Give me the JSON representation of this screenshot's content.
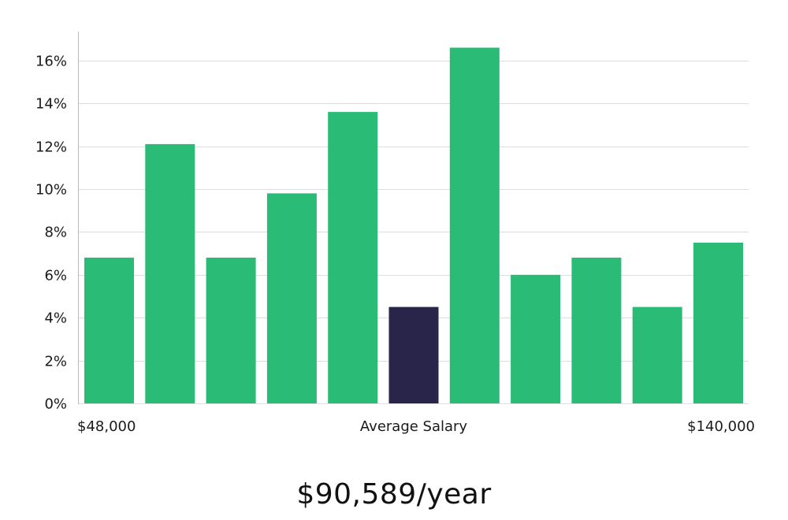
{
  "chart_data": {
    "type": "bar",
    "title": "",
    "xlabel": "Average Salary",
    "ylabel": "",
    "ylim": [
      0,
      17.5
    ],
    "y_ticks": [
      "0%",
      "2%",
      "4%",
      "6%",
      "8%",
      "10%",
      "12%",
      "14%",
      "16%"
    ],
    "y_tick_values": [
      0,
      2,
      4,
      6,
      8,
      10,
      12,
      14,
      16
    ],
    "x_start_label": "$48,000",
    "x_end_label": "$140,000",
    "values": [
      6.8,
      12.1,
      6.8,
      9.8,
      13.6,
      4.5,
      16.6,
      6.0,
      6.8,
      4.5,
      7.5
    ],
    "highlight_index": 5,
    "grid": "horizontal",
    "colors": {
      "bar": "#2abb76",
      "highlight": "#28244a",
      "grid": "#dddddd",
      "axis": "#bbbbbb"
    }
  },
  "salary_label": "$90,589/year"
}
